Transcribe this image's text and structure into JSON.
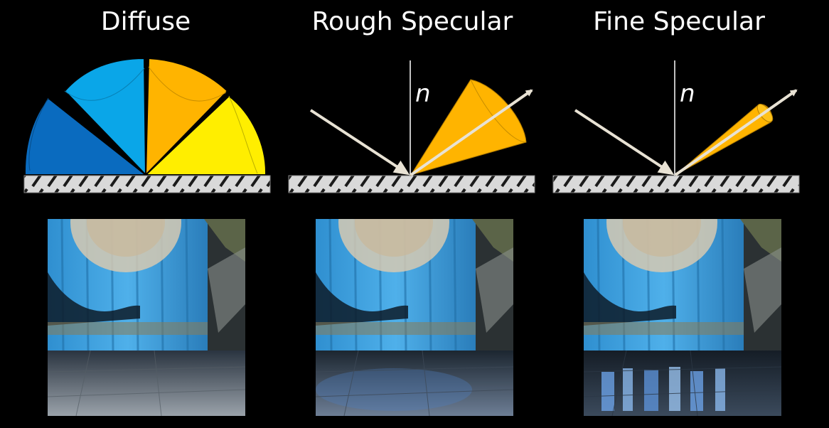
{
  "panels": [
    {
      "title": "Diffuse"
    },
    {
      "title": "Rough Specular",
      "normal_label": "n"
    },
    {
      "title": "Fine Specular",
      "normal_label": "n"
    }
  ],
  "colors": {
    "background": "#000000",
    "lobe_dark_blue": "#0a6bbf",
    "lobe_light_blue": "#0aa6e8",
    "lobe_orange": "#ffb400",
    "lobe_yellow": "#ffee00",
    "ray": "#e8e2d4",
    "surface": "#d8d8d8",
    "curtain": "#3d9fdc"
  },
  "icons": [
    "diffuse-lobe-icon",
    "rough-specular-cone-icon",
    "fine-specular-cone-icon",
    "surface-hatch-icon",
    "incident-ray-arrow-icon",
    "reflected-ray-arrow-icon"
  ]
}
